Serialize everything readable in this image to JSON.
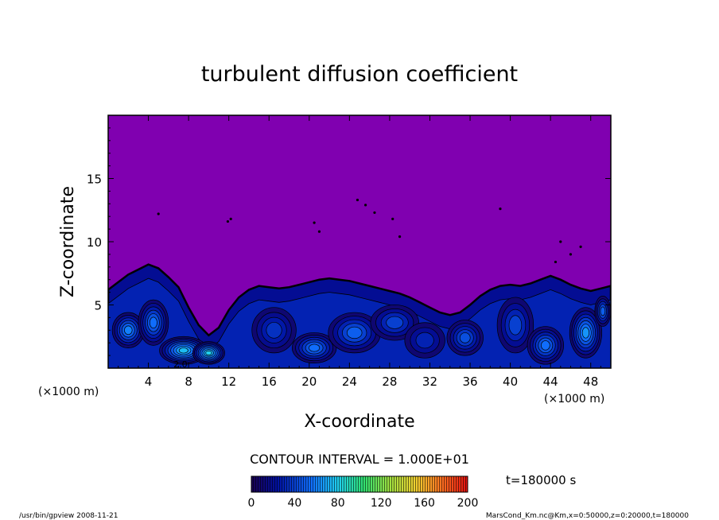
{
  "chart_data": {
    "type": "heatmap",
    "title": "turbulent diffusion coefficient",
    "xlabel": "X-coordinate",
    "ylabel": "Z-coordinate",
    "x_unit": "(×1000 m)",
    "y_unit": "(×1000 m)",
    "xlim": [
      0,
      50
    ],
    "ylim": [
      0,
      20
    ],
    "x_ticks": [
      4,
      8,
      12,
      16,
      20,
      24,
      28,
      32,
      36,
      40,
      44,
      48
    ],
    "y_ticks": [
      5,
      10,
      15
    ],
    "contour_interval_text": "CONTOUR INTERVAL = 1.000E+01",
    "colorbar": {
      "min": 0,
      "max": 200,
      "ticks": [
        0,
        40,
        80,
        120,
        160,
        200
      ]
    },
    "time_label": "t=180000 s",
    "stamp_left": "/usr/bin/gpview   2008-11-21",
    "stamp_right": "MarsCond_Km.nc@Km,x=0:50000,z=0:20000,t=180000",
    "inline_label": "2.0",
    "background_value": 0,
    "colors": {
      "background": "#8000b0",
      "frame": "#000000"
    },
    "layer_top_profile": {
      "x": [
        0,
        1,
        2,
        3,
        4,
        5,
        6,
        7,
        8,
        9,
        10,
        11,
        12,
        13,
        14,
        15,
        16,
        17,
        18,
        19,
        20,
        21,
        22,
        23,
        24,
        25,
        26,
        27,
        28,
        29,
        30,
        31,
        32,
        33,
        34,
        35,
        36,
        37,
        38,
        39,
        40,
        41,
        42,
        43,
        44,
        45,
        46,
        47,
        48,
        49,
        50
      ],
      "z": [
        6.2,
        6.8,
        7.4,
        7.8,
        8.2,
        7.9,
        7.2,
        6.4,
        4.8,
        3.4,
        2.6,
        3.2,
        4.6,
        5.6,
        6.2,
        6.5,
        6.4,
        6.3,
        6.4,
        6.6,
        6.8,
        7.0,
        7.1,
        7.0,
        6.9,
        6.7,
        6.5,
        6.3,
        6.1,
        5.9,
        5.6,
        5.2,
        4.8,
        4.4,
        4.2,
        4.4,
        5.0,
        5.7,
        6.2,
        6.5,
        6.6,
        6.5,
        6.7,
        7.0,
        7.3,
        7.0,
        6.6,
        6.3,
        6.1,
        6.3,
        6.5
      ]
    },
    "blobs": [
      {
        "x": 2.0,
        "z": 3.0,
        "rx": 1.6,
        "rz": 1.4,
        "v": 60
      },
      {
        "x": 4.5,
        "z": 3.6,
        "rx": 1.5,
        "rz": 1.8,
        "v": 55
      },
      {
        "x": 7.5,
        "z": 1.4,
        "rx": 2.4,
        "rz": 1.1,
        "v": 75
      },
      {
        "x": 10.0,
        "z": 1.2,
        "rx": 1.6,
        "rz": 0.9,
        "v": 80
      },
      {
        "x": 16.5,
        "z": 3.0,
        "rx": 2.2,
        "rz": 1.8,
        "v": 35
      },
      {
        "x": 20.5,
        "z": 1.6,
        "rx": 2.2,
        "rz": 1.2,
        "v": 55
      },
      {
        "x": 24.5,
        "z": 2.8,
        "rx": 2.6,
        "rz": 1.6,
        "v": 50
      },
      {
        "x": 28.5,
        "z": 3.6,
        "rx": 2.4,
        "rz": 1.4,
        "v": 40
      },
      {
        "x": 31.5,
        "z": 2.2,
        "rx": 2.0,
        "rz": 1.4,
        "v": 30
      },
      {
        "x": 35.5,
        "z": 2.4,
        "rx": 1.8,
        "rz": 1.4,
        "v": 45
      },
      {
        "x": 40.5,
        "z": 3.4,
        "rx": 1.8,
        "rz": 2.2,
        "v": 40
      },
      {
        "x": 43.5,
        "z": 1.8,
        "rx": 1.8,
        "rz": 1.5,
        "v": 55
      },
      {
        "x": 47.5,
        "z": 2.8,
        "rx": 1.6,
        "rz": 2.0,
        "v": 65
      },
      {
        "x": 49.2,
        "z": 4.5,
        "rx": 0.8,
        "rz": 1.2,
        "v": 50
      }
    ]
  }
}
